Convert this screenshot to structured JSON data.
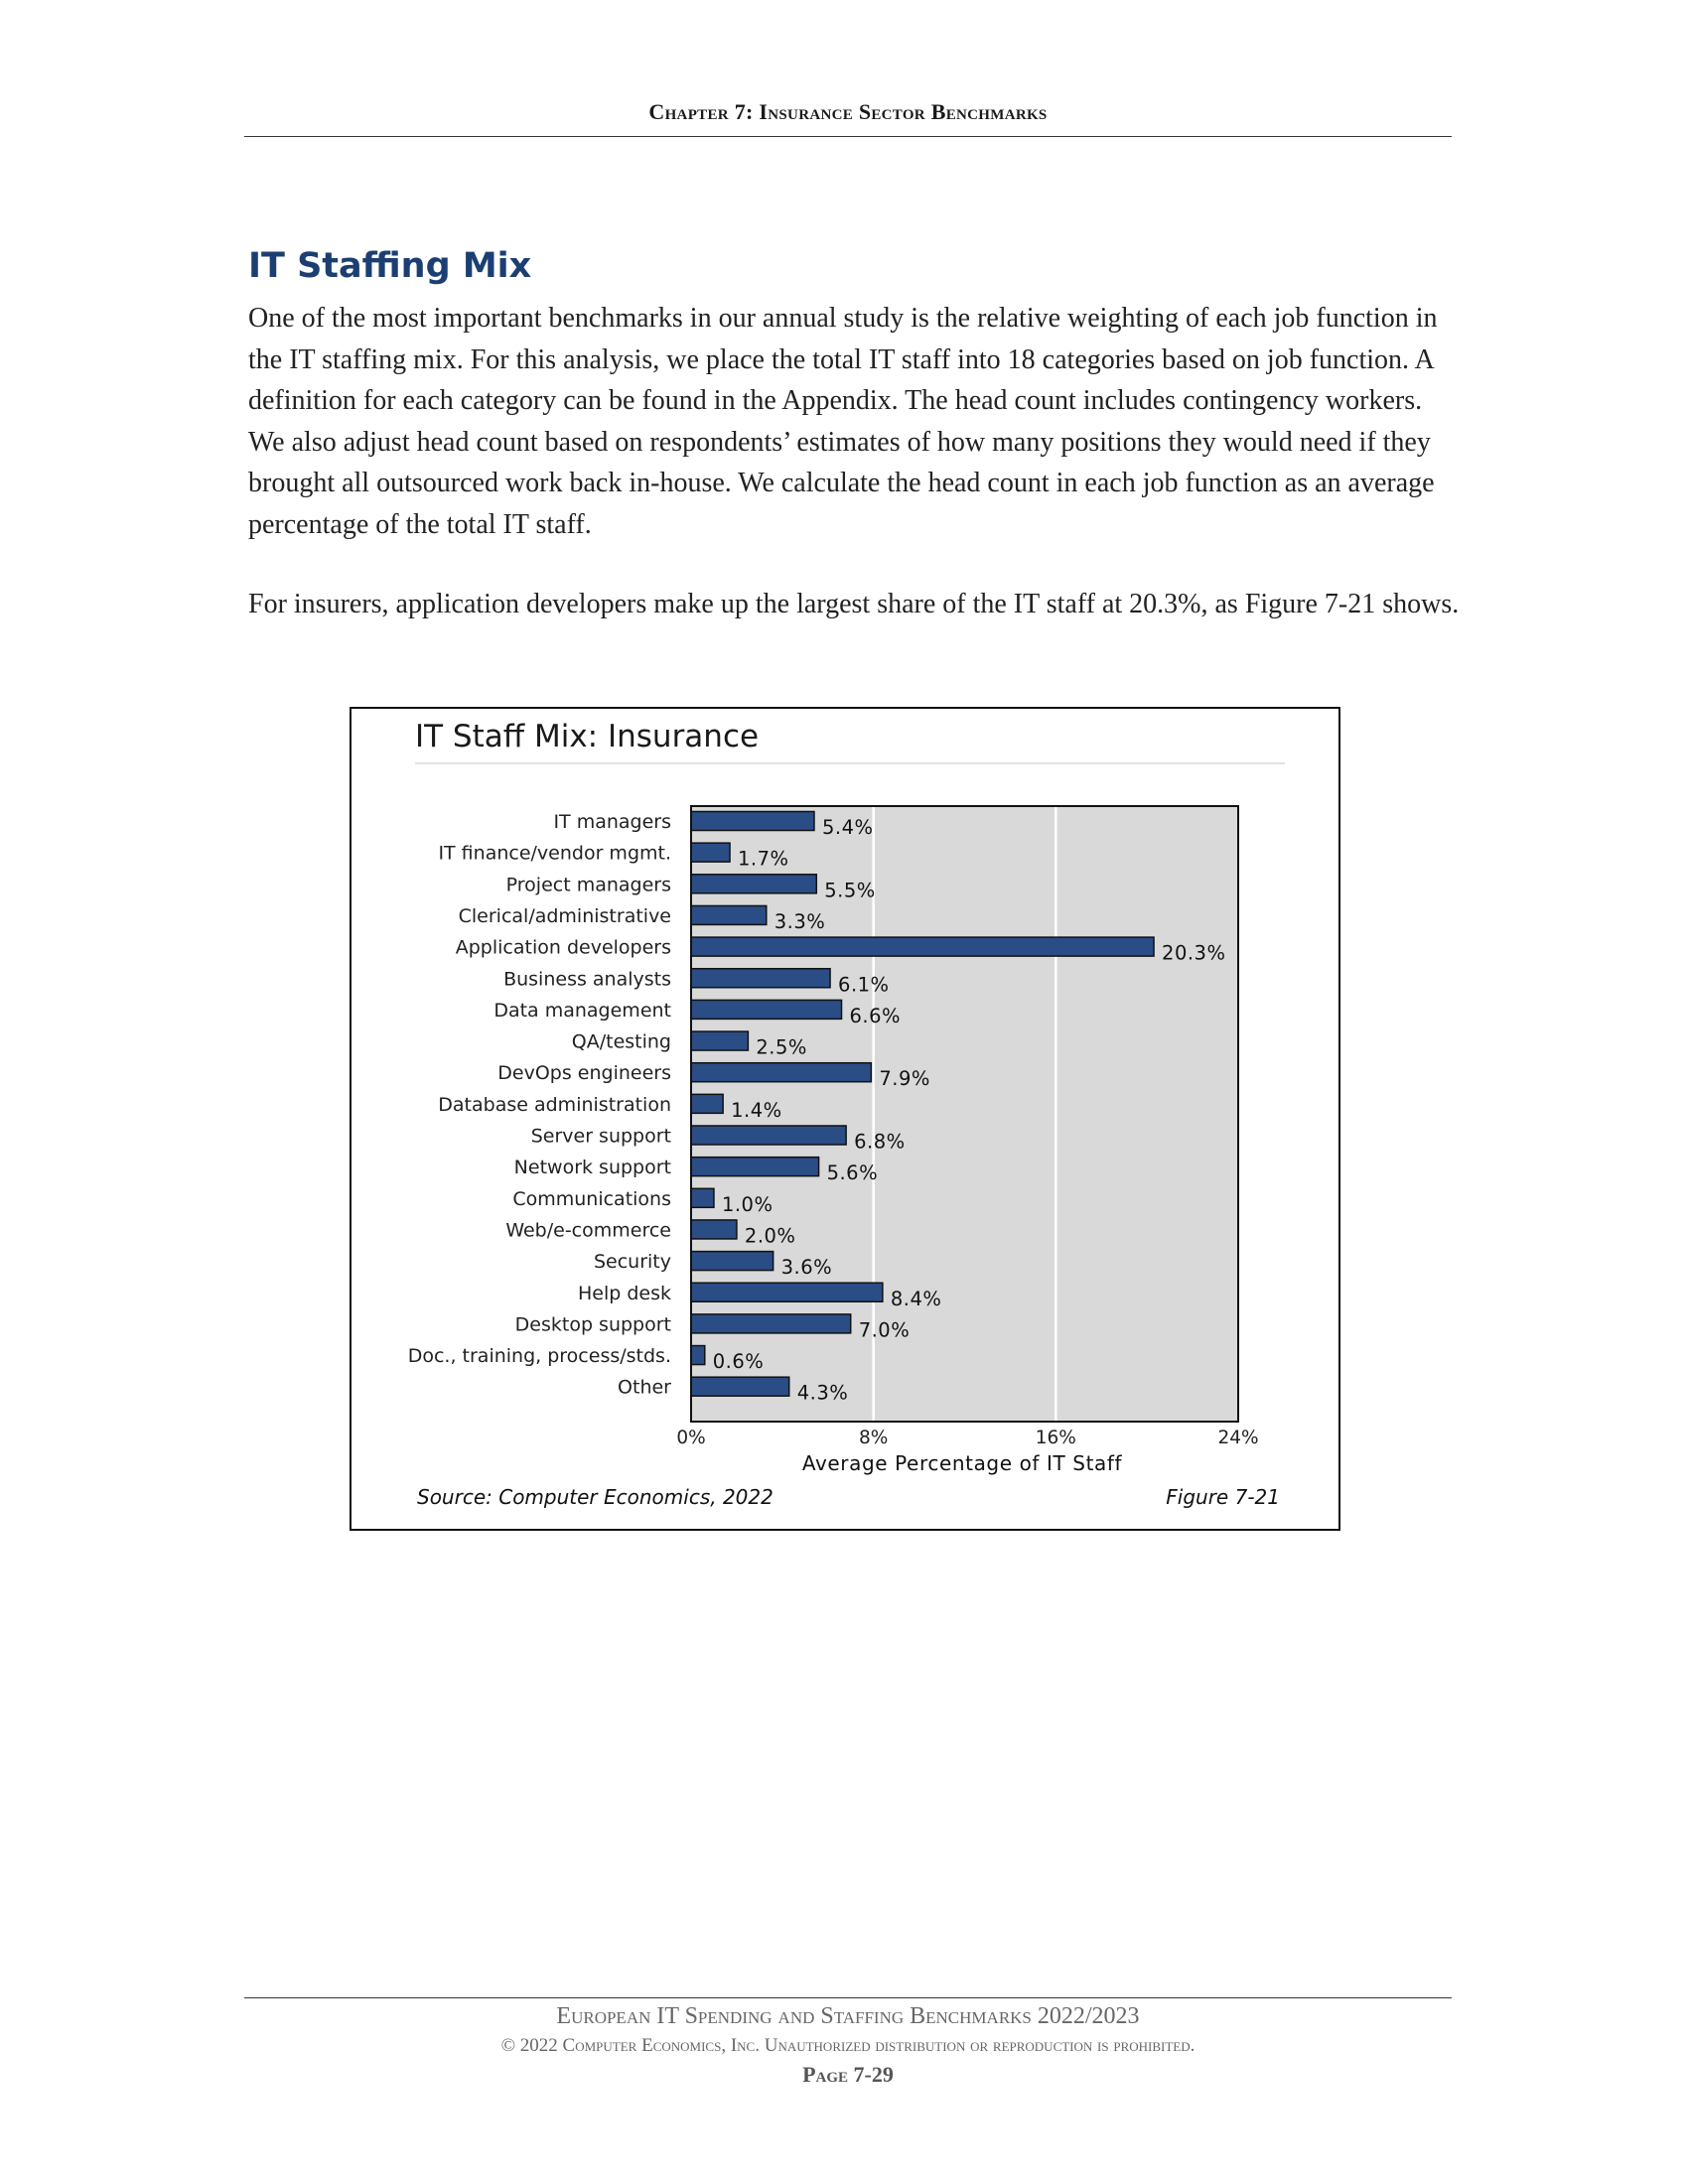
{
  "page": {
    "header": "Chapter 7: Insurance Sector Benchmarks",
    "section_title": "IT Staffing Mix",
    "paragraph1": "One of the most important benchmarks in our annual study is the relative weighting of each job function in the IT staffing mix. For this analysis, we place the total IT staff into 18 categories based on job function. A definition for each category can be found in the Appendix. The head count includes contingency workers. We also adjust head count based on respondents’ estimates of how many positions they would need if they brought all outsourced work back in-house. We calculate the head count in each job function as an average percentage of the total IT staff.",
    "paragraph2": "For insurers, application developers make up the largest share of the IT staff at 20.3%, as Figure 7-21 shows.",
    "footer_line1": "European IT Spending and Staffing Benchmarks 2022/2023",
    "footer_line2": "© 2022 Computer Economics, Inc. Unauthorized distribution or reproduction is prohibited.",
    "footer_line3": "Page 7-29"
  },
  "chart_data": {
    "type": "bar",
    "orientation": "horizontal",
    "title": "IT Staff Mix: Insurance",
    "xlabel": "Average Percentage of IT Staff",
    "ylabel": "",
    "xlim": [
      0,
      24
    ],
    "xticks": [
      0,
      8,
      16,
      24
    ],
    "xtick_labels": [
      "0%",
      "8%",
      "16%",
      "24%"
    ],
    "grid": true,
    "bar_color": "#2b4d86",
    "plot_background": "#d9d9d9",
    "source": "Source: Computer Economics, 2022",
    "figure_label": "Figure 7-21",
    "categories": [
      "IT managers",
      "IT finance/vendor mgmt.",
      "Project managers",
      "Clerical/administrative",
      "Application developers",
      "Business analysts",
      "Data management",
      "QA/testing",
      "DevOps engineers",
      "Database administration",
      "Server support",
      "Network support",
      "Communications",
      "Web/e-commerce",
      "Security",
      "Help desk",
      "Desktop support",
      "Doc., training, process/stds.",
      "Other"
    ],
    "values": [
      5.4,
      1.7,
      5.5,
      3.3,
      20.3,
      6.1,
      6.6,
      2.5,
      7.9,
      1.4,
      6.8,
      5.6,
      1.0,
      2.0,
      3.6,
      8.4,
      7.0,
      0.6,
      4.3
    ],
    "value_labels": [
      "5.4%",
      "1.7%",
      "5.5%",
      "3.3%",
      "20.3%",
      "6.1%",
      "6.6%",
      "2.5%",
      "7.9%",
      "1.4%",
      "6.8%",
      "5.6%",
      "1.0%",
      "2.0%",
      "3.6%",
      "8.4%",
      "7.0%",
      "0.6%",
      "4.3%"
    ]
  }
}
